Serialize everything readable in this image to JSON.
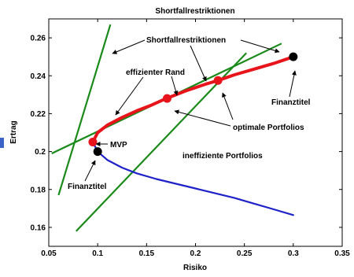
{
  "chart_data": {
    "type": "line",
    "title": "Shortfallrestriktionen",
    "xlabel": "Risiko",
    "ylabel": "Ertrag",
    "xlim": [
      0.05,
      0.35
    ],
    "ylim": [
      0.15,
      0.27
    ],
    "xticks": [
      "0.05",
      "0.1",
      "0.15",
      "0.2",
      "0.25",
      "0.3",
      "0.35"
    ],
    "yticks": [
      "0.16",
      "0.18",
      "0.2",
      "0.22",
      "0.24",
      "0.26"
    ],
    "grid": false,
    "series": [
      {
        "role": "efficient-frontier",
        "color": "#e8141b",
        "x": [
          0.095,
          0.1,
          0.11,
          0.125,
          0.14,
          0.155,
          0.17,
          0.19,
          0.21,
          0.223,
          0.24,
          0.26,
          0.28,
          0.3
        ],
        "y": [
          0.205,
          0.21,
          0.214,
          0.218,
          0.2215,
          0.2245,
          0.228,
          0.232,
          0.2355,
          0.2375,
          0.2405,
          0.2435,
          0.2465,
          0.25
        ]
      },
      {
        "role": "inefficient-frontier",
        "color": "#1e22c8",
        "x": [
          0.095,
          0.1,
          0.11,
          0.125,
          0.14,
          0.16,
          0.18,
          0.2,
          0.22,
          0.24,
          0.26,
          0.28,
          0.3
        ],
        "y": [
          0.205,
          0.2,
          0.1955,
          0.1915,
          0.1885,
          0.1855,
          0.183,
          0.1805,
          0.178,
          0.1755,
          0.1725,
          0.1695,
          0.1665
        ]
      }
    ],
    "shortfall_lines": [
      {
        "color": "#1a8a1a",
        "x": [
          0.06,
          0.113
        ],
        "y": [
          0.177,
          0.267
        ]
      },
      {
        "color": "#1a8a1a",
        "x": [
          0.053,
          0.288
        ],
        "y": [
          0.199,
          0.257
        ]
      },
      {
        "color": "#1a8a1a",
        "x": [
          0.078,
          0.252
        ],
        "y": [
          0.158,
          0.252
        ]
      }
    ],
    "points": [
      {
        "x": 0.095,
        "y": 0.205,
        "color": "#e8141b"
      },
      {
        "x": 0.171,
        "y": 0.228,
        "color": "#e8141b"
      },
      {
        "x": 0.223,
        "y": 0.2375,
        "color": "#e8141b"
      },
      {
        "x": 0.1,
        "y": 0.2,
        "color": "#000000"
      },
      {
        "x": 0.3,
        "y": 0.25,
        "color": "#000000"
      }
    ],
    "annotations": {
      "shortfall": "Shortfallrestriktionen",
      "efficient": "effizienter Rand",
      "finanztitel_right": "Finanztitel",
      "optimal": "optimale Portfolios",
      "mvp": "MVP",
      "inefficient": "ineffiziente Portfolios",
      "finanztitel_left": "Finanztitel"
    }
  }
}
